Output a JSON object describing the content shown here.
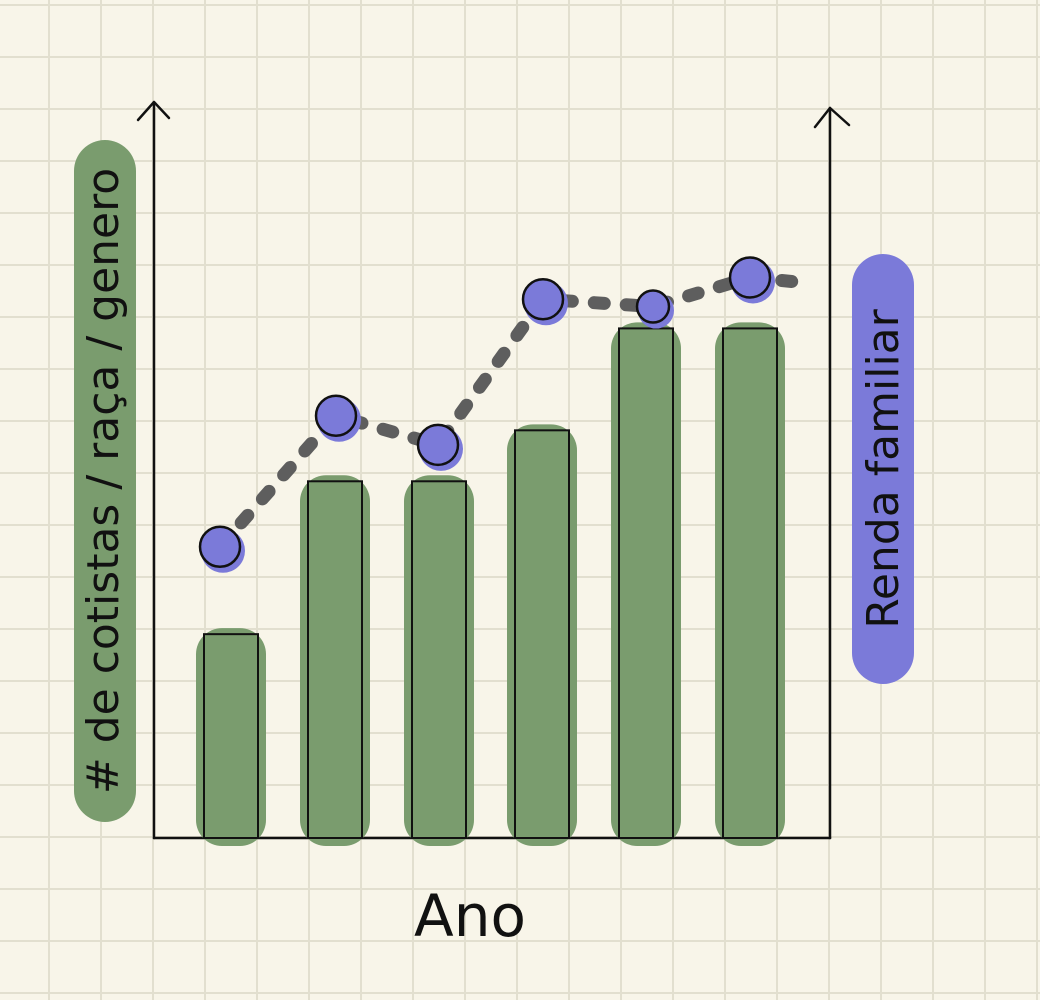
{
  "chart_data": {
    "type": "bar",
    "categories": [
      "",
      "",
      "",
      "",
      "",
      ""
    ],
    "xlabel": "Ano",
    "ylabel": "# de cotistas / raça / genero",
    "y2label": "Renda familiar",
    "series": [
      {
        "type": "bar",
        "values": [
          28,
          49,
          49,
          56,
          70,
          70
        ]
      },
      {
        "type": "line",
        "values": [
          40,
          58,
          54,
          74,
          73,
          77
        ]
      }
    ],
    "ylim": [
      0,
      100
    ],
    "y2lim": [
      0,
      100
    ],
    "grid": true,
    "colors": {
      "bar": "#7a9c6e",
      "bar_outline": "#111111",
      "point": "#7b7ad9",
      "line": "#5e5e5e",
      "ylabel_pill": "#7a9c6e",
      "y2label_pill": "#7b7ad9"
    }
  }
}
